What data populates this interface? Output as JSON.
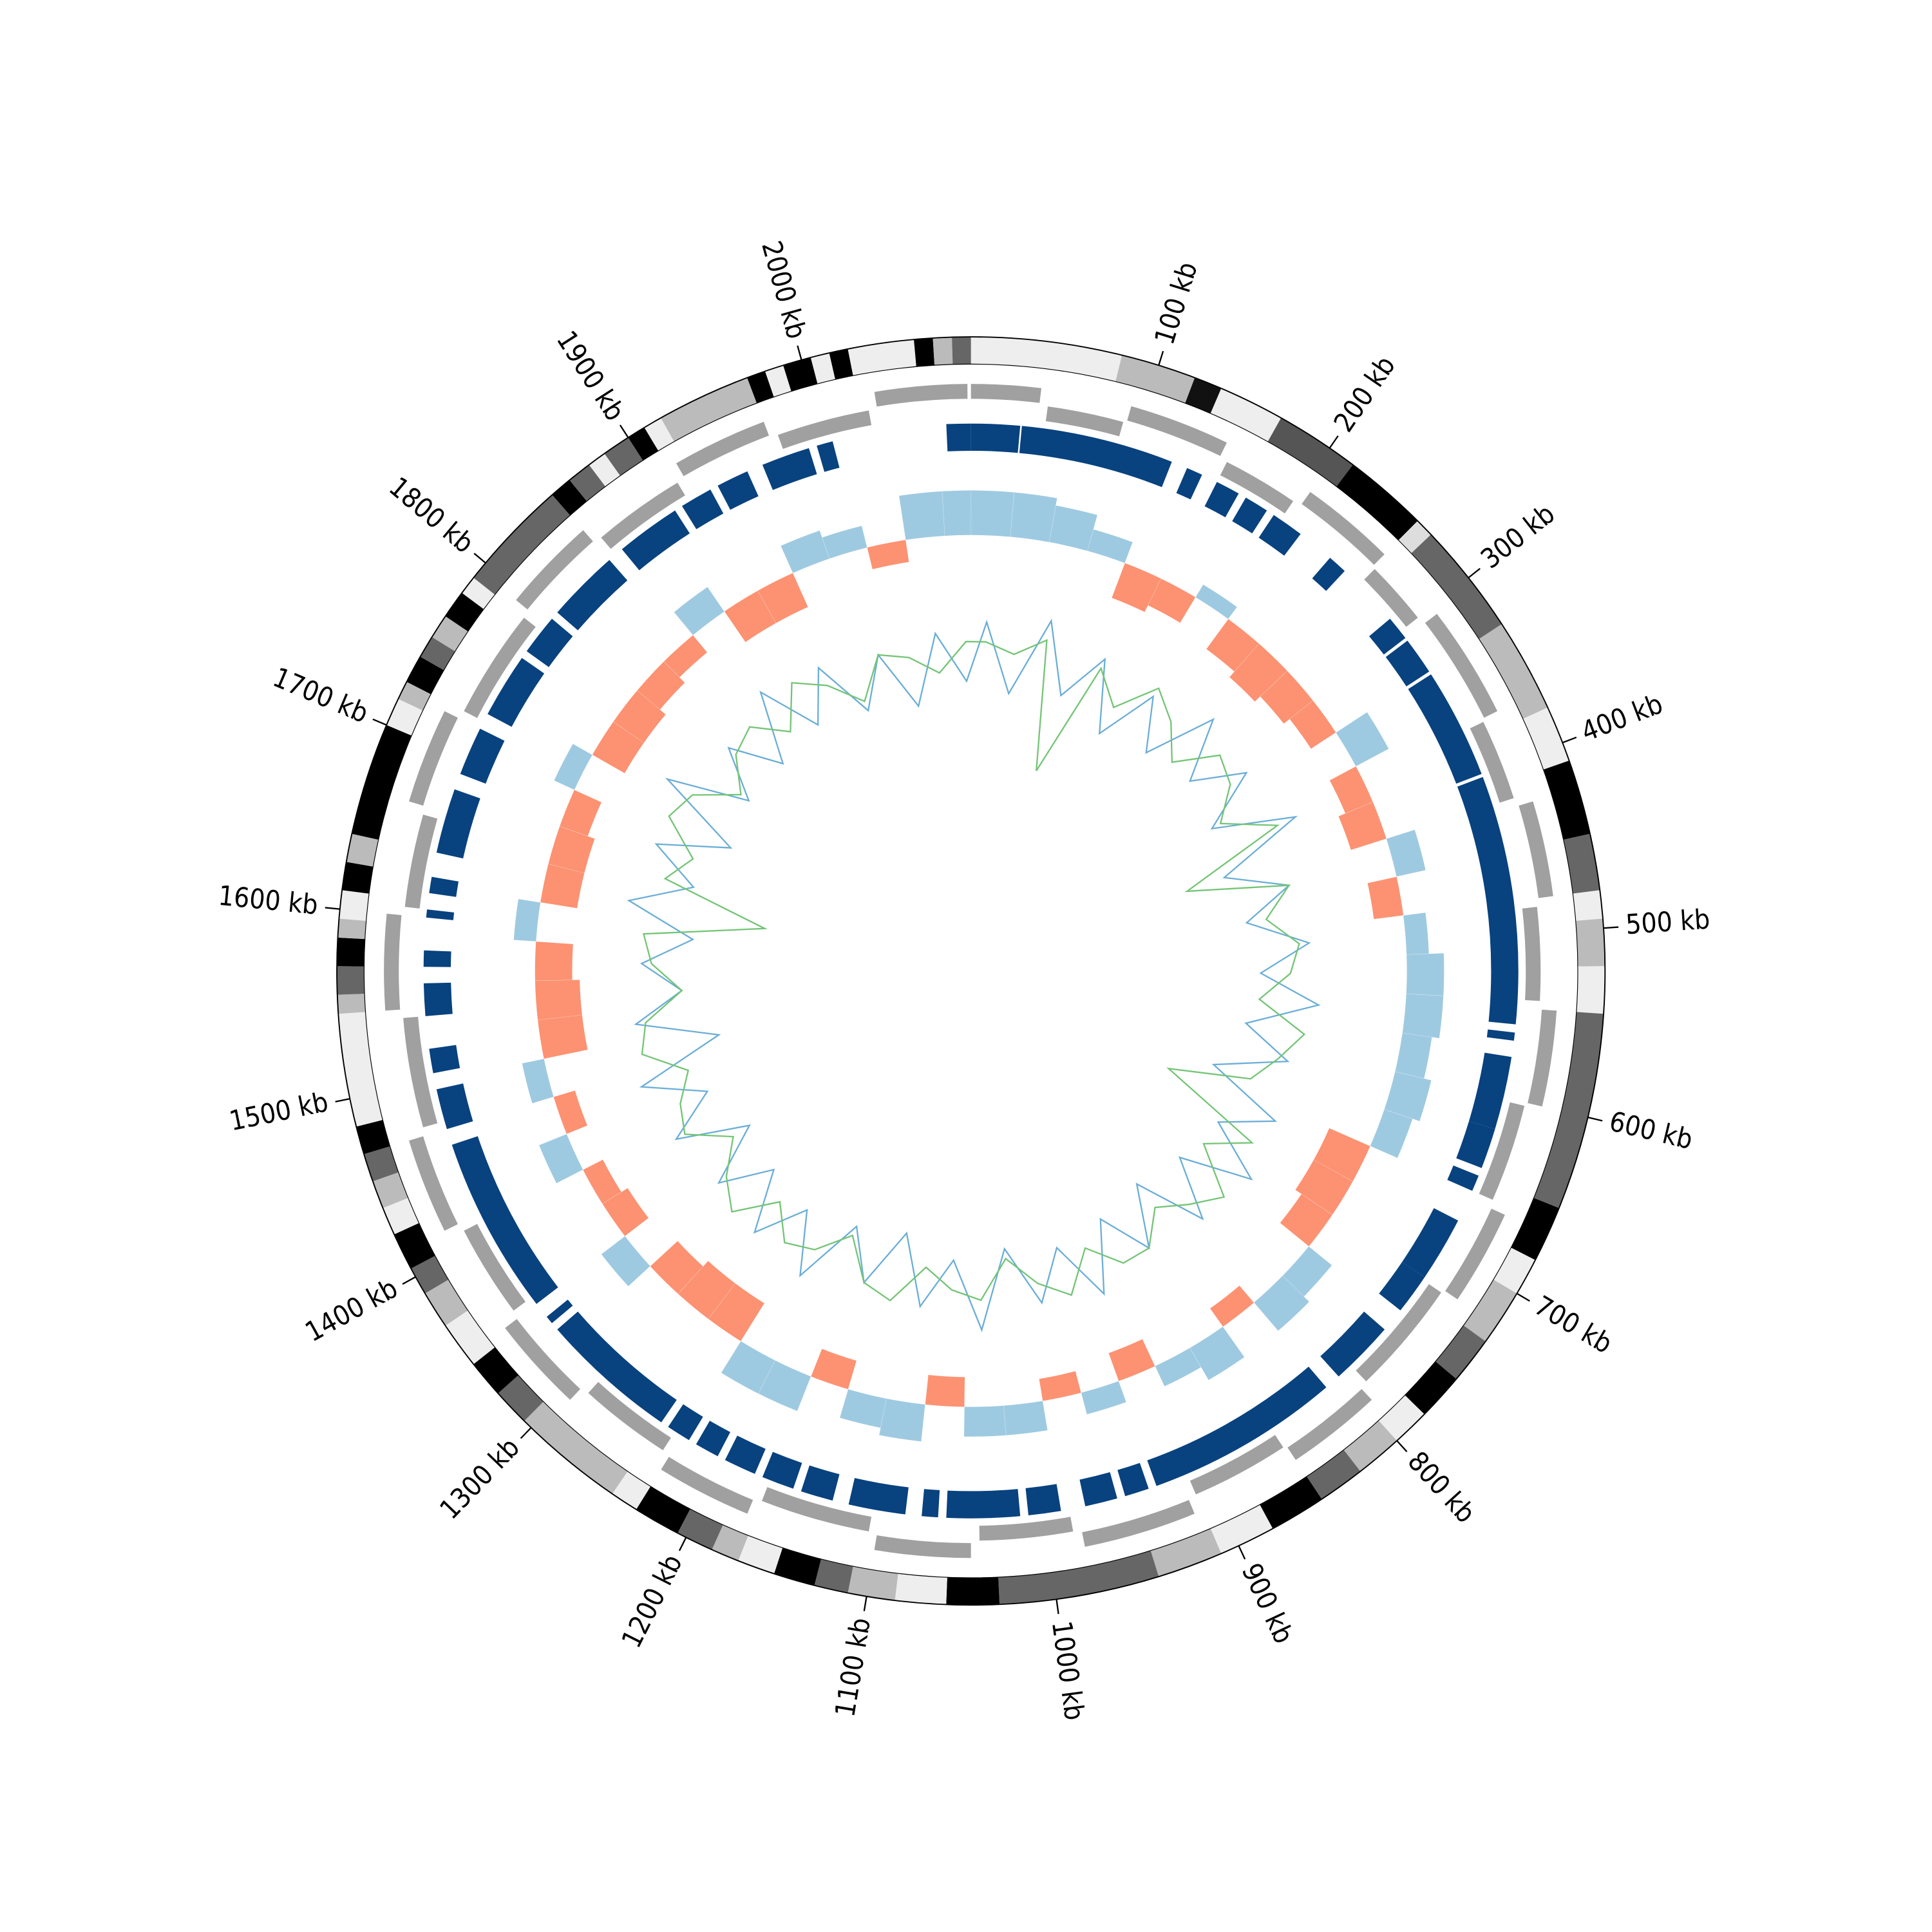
{
  "chart_data": {
    "type": "circular-genome",
    "xlim": [
      0,
      2090
    ],
    "xticks": [
      {
        "value": 100,
        "label": "100 kb"
      },
      {
        "value": 200,
        "label": "200 kb"
      },
      {
        "value": 300,
        "label": "300 kb"
      },
      {
        "value": 400,
        "label": "400 kb"
      },
      {
        "value": 500,
        "label": "500 kb"
      },
      {
        "value": 600,
        "label": "600 kb"
      },
      {
        "value": 700,
        "label": "700 kb"
      },
      {
        "value": 800,
        "label": "800 kb"
      },
      {
        "value": 900,
        "label": "900 kb"
      },
      {
        "value": 1000,
        "label": "1000 kb"
      },
      {
        "value": 1100,
        "label": "1100 kb"
      },
      {
        "value": 1200,
        "label": "1200 kb"
      },
      {
        "value": 1300,
        "label": "1300 kb"
      },
      {
        "value": 1400,
        "label": "1400 kb"
      },
      {
        "value": 1500,
        "label": "1500 kb"
      },
      {
        "value": 1600,
        "label": "1600 kb"
      },
      {
        "value": 1700,
        "label": "1700 kb"
      },
      {
        "value": 1800,
        "label": "1800 kb"
      },
      {
        "value": 1900,
        "label": "1900 kb"
      },
      {
        "value": 2000,
        "label": "2000 kb"
      }
    ],
    "bands": {
      "start": [
        0,
        80,
        120,
        135,
        170,
        215,
        260,
        270,
        330,
        380,
        410,
        450,
        480,
        495,
        520,
        545,
        650,
        680,
        700,
        730,
        755,
        780,
        800,
        825,
        850,
        880,
        910,
        945,
        1030,
        1058,
        1085,
        1110,
        1128,
        1150,
        1170,
        1185,
        1205,
        1230,
        1245,
        1305,
        1325,
        1345,
        1370,
        1390,
        1405,
        1425,
        1440,
        1455,
        1470,
        1485,
        1545,
        1555,
        1570,
        1585,
        1595,
        1610,
        1625,
        1640,
        1700,
        1715,
        1725,
        1740,
        1752,
        1765,
        1780,
        1790,
        1850,
        1862,
        1875,
        1885,
        1900,
        1910,
        1920,
        1970,
        1980,
        1990,
        2005,
        2015,
        2025,
        2060,
        2070,
        2080
      ],
      "end": [
        80,
        120,
        135,
        170,
        215,
        260,
        270,
        330,
        380,
        410,
        450,
        480,
        495,
        520,
        545,
        650,
        680,
        700,
        730,
        755,
        780,
        800,
        825,
        850,
        880,
        910,
        945,
        1030,
        1058,
        1085,
        1110,
        1128,
        1150,
        1170,
        1185,
        1205,
        1230,
        1245,
        1305,
        1325,
        1345,
        1370,
        1390,
        1405,
        1425,
        1440,
        1455,
        1470,
        1485,
        1545,
        1555,
        1570,
        1585,
        1595,
        1610,
        1625,
        1640,
        1700,
        1715,
        1725,
        1740,
        1752,
        1765,
        1780,
        1790,
        1850,
        1862,
        1875,
        1885,
        1900,
        1910,
        1920,
        1970,
        1980,
        1990,
        2005,
        2015,
        2025,
        2060,
        2070,
        2080,
        2090
      ],
      "color": [
        "#eeeeee",
        "#bbbbbb",
        "#111111",
        "#eeeeee",
        "#555555",
        "#000000",
        "#dddddd",
        "#666666",
        "#bbbbbb",
        "#eeeeee",
        "#000000",
        "#666666",
        "#eeeeee",
        "#bbbbbb",
        "#eeeeee",
        "#666666",
        "#000000",
        "#eeeeee",
        "#bbbbbb",
        "#666666",
        "#000000",
        "#eeeeee",
        "#bbbbbb",
        "#666666",
        "#000000",
        "#eeeeee",
        "#bbbbbb",
        "#666666",
        "#000000",
        "#eeeeee",
        "#bbbbbb",
        "#666666",
        "#000000",
        "#eeeeee",
        "#bbbbbb",
        "#666666",
        "#000000",
        "#eeeeee",
        "#bbbbbb",
        "#666666",
        "#000000",
        "#eeeeee",
        "#bbbbbb",
        "#666666",
        "#000000",
        "#eeeeee",
        "#bbbbbb",
        "#666666",
        "#000000",
        "#eeeeee",
        "#bbbbbb",
        "#666666",
        "#000000",
        "#bbbbbb",
        "#eeeeee",
        "#000000",
        "#bbbbbb",
        "#000000",
        "#eeeeee",
        "#bbbbbb",
        "#000000",
        "#666666",
        "#bbbbbb",
        "#000000",
        "#eeeeee",
        "#666666",
        "#000000",
        "#666666",
        "#eeeeee",
        "#666666",
        "#000000",
        "#eeeeee",
        "#bbbbbb",
        "#000000",
        "#eeeeee",
        "#000000",
        "#eeeeee",
        "#000000",
        "#eeeeee",
        "#000000",
        "#bbbbbb",
        "#666666"
      ]
    },
    "genes": {
      "color": "#a0a0a0",
      "start": [
        0,
        45,
        92,
        155,
        205,
        262,
        305,
        372,
        425,
        485,
        545,
        602,
        665,
        722,
        795,
        852,
        915,
        985,
        1045,
        1105,
        1175,
        1235,
        1295,
        1355,
        1415,
        1475,
        1545,
        1605,
        1665,
        1725,
        1795,
        1855,
        1915,
        1975,
        2035
      ],
      "end": [
        40,
        90,
        150,
        200,
        260,
        300,
        370,
        420,
        480,
        540,
        600,
        660,
        720,
        790,
        850,
        910,
        980,
        1040,
        1100,
        1170,
        1230,
        1290,
        1350,
        1410,
        1470,
        1540,
        1600,
        1660,
        1720,
        1790,
        1850,
        1910,
        1970,
        2030,
        2088
      ],
      "strand": [
        1,
        -1,
        1,
        -1,
        1,
        -1,
        1,
        -1,
        1,
        -1,
        1,
        -1,
        1,
        -1,
        1,
        -1,
        1,
        -1,
        1,
        -1,
        1,
        -1,
        1,
        -1,
        1,
        -1,
        1,
        -1,
        1,
        -1,
        1,
        -1,
        1,
        -1,
        1
      ]
    },
    "blocks": {
      "color": "#08427f",
      "start": [
        0,
        31,
        135,
        155,
        175,
        195,
        238,
        290,
        307,
        332,
        402,
        560,
        575,
        620,
        650,
        680,
        720,
        760,
        810,
        935,
        955,
        990,
        1015,
        1065,
        1085,
        1130,
        1155,
        1180,
        1205,
        1225,
        1245,
        1335,
        1350,
        1470,
        1505,
        1540,
        1570,
        1600,
        1615,
        1640,
        1690,
        1730,
        1775,
        1805,
        1860,
        1905,
        1930,
        1960,
        1995,
        2075
      ],
      "end": [
        30,
        125,
        145,
        170,
        190,
        215,
        250,
        305,
        330,
        400,
        555,
        565,
        620,
        645,
        660,
        720,
        745,
        800,
        930,
        950,
        975,
        1010,
        1060,
        1075,
        1120,
        1150,
        1175,
        1200,
        1220,
        1240,
        1330,
        1340,
        1460,
        1495,
        1520,
        1560,
        1580,
        1605,
        1625,
        1680,
        1720,
        1770,
        1800,
        1850,
        1900,
        1925,
        1950,
        1990,
        2005,
        2090
      ]
    },
    "skew": {
      "ylim": [
        -1,
        1
      ],
      "pos_color": "#9ecae1",
      "neg_color": "#fc9272",
      "x": [
        15,
        45,
        75,
        105,
        135,
        165,
        195,
        225,
        255,
        285,
        315,
        345,
        375,
        405,
        435,
        465,
        495,
        525,
        555,
        585,
        615,
        645,
        675,
        705,
        735,
        765,
        795,
        825,
        855,
        885,
        915,
        945,
        975,
        1005,
        1035,
        1065,
        1095,
        1125,
        1155,
        1185,
        1215,
        1245,
        1275,
        1305,
        1335,
        1365,
        1395,
        1425,
        1455,
        1485,
        1515,
        1545,
        1575,
        1605,
        1635,
        1665,
        1695,
        1725,
        1755,
        1785,
        1815,
        1845,
        1875,
        1905,
        1935,
        1965,
        1995,
        2025,
        2055,
        2085
      ],
      "values": [
        0.6,
        0.6,
        0.5,
        0.3,
        -0.5,
        -0.4,
        0.2,
        -0.5,
        -0.6,
        -0.5,
        -0.4,
        0.5,
        -0.4,
        -0.5,
        0.4,
        -0.4,
        0.3,
        0.5,
        0.5,
        0.4,
        0.5,
        0.4,
        -0.6,
        -0.6,
        -0.5,
        0.4,
        0.5,
        -0.3,
        0.5,
        0.3,
        -0.4,
        0.3,
        -0.3,
        0.4,
        0.4,
        -0.4,
        0.5,
        0.4,
        -0.4,
        0.5,
        0.5,
        -0.6,
        -0.6,
        -0.5,
        0.4,
        -0.4,
        -0.3,
        0.4,
        -0.3,
        0.3,
        -0.6,
        -0.6,
        -0.5,
        0.3,
        -0.5,
        -0.5,
        -0.4,
        0.3,
        -0.5,
        -0.5,
        -0.4,
        -0.3,
        0.4,
        -0.5,
        -0.5,
        0.4,
        0.3,
        -0.3,
        0.6,
        0.6
      ]
    },
    "gc": {
      "ylim": [
        -1,
        1
      ],
      "x": [
        15,
        45,
        75,
        105,
        135,
        165,
        195,
        225,
        255,
        285,
        315,
        345,
        375,
        405,
        435,
        465,
        495,
        525,
        555,
        585,
        615,
        645,
        675,
        705,
        735,
        765,
        795,
        825,
        855,
        885,
        915,
        945,
        975,
        1005,
        1035,
        1065,
        1095,
        1125,
        1155,
        1185,
        1215,
        1245,
        1275,
        1305,
        1335,
        1365,
        1395,
        1425,
        1455,
        1485,
        1515,
        1545,
        1575,
        1605,
        1635,
        1665,
        1695,
        1725,
        1755,
        1785,
        1815,
        1845,
        1875,
        1905,
        1935,
        1965,
        1995,
        2025,
        2055,
        2085
      ],
      "series": [
        {
          "color": "#6baed6",
          "values": [
            0.4,
            -0.3,
            0.5,
            -0.2,
            0.3,
            -0.4,
            0.2,
            -0.3,
            0.4,
            -0.2,
            0.3,
            -0.3,
            0.5,
            -0.4,
            0.2,
            -0.3,
            0.3,
            -0.2,
            0.4,
            -0.3,
            0.2,
            -0.5,
            0.3,
            -0.2,
            0.4,
            -0.3,
            0.3,
            -0.4,
            0.2,
            -0.3,
            0.4,
            -0.2,
            0.3,
            -0.3,
            0.5,
            -0.2,
            0.3,
            -0.4,
            0.2,
            -0.3,
            0.4,
            -0.2,
            0.3,
            -0.3,
            0.2,
            -0.4,
            0.3,
            -0.2,
            0.4,
            -0.5,
            0.3,
            -0.2,
            0.2,
            -0.3,
            0.4,
            -0.2,
            0.3,
            -0.4,
            0.5,
            -0.3,
            0.2,
            -0.3,
            0.4,
            -0.2,
            0.3,
            -0.3,
            0.2,
            -0.4,
            0.3,
            -0.2
          ]
        },
        {
          "color": "#74c476",
          "values": [
            0.2,
            0.1,
            0.3,
            -1.0,
            0.2,
            -0.1,
            0.3,
            0.1,
            -0.2,
            0.2,
            0.1,
            -0.2,
            0.3,
            -0.8,
            0.2,
            -0.1,
            0.2,
            0.1,
            -0.2,
            0.3,
            0.1,
            -0.1,
            -0.9,
            0.2,
            -0.2,
            0.3,
            0.1,
            -0.1,
            0.2,
            0.2,
            -0.1,
            0.3,
            0.1,
            -0.2,
            0.2,
            0.1,
            -0.1,
            0.3,
            0.2,
            -0.2,
            0.1,
            0.2,
            -0.1,
            0.3,
            0.1,
            -0.2,
            0.2,
            0.1,
            -0.1,
            0.3,
            0.2,
            -0.2,
            0.1,
            0.2,
            -1.0,
            0.1,
            -0.1,
            0.3,
            0.2,
            -0.2,
            0.1,
            0.2,
            -0.1,
            0.3,
            0.1,
            -0.2,
            0.2,
            0.1,
            -0.1,
            0.2
          ]
        }
      ]
    }
  }
}
